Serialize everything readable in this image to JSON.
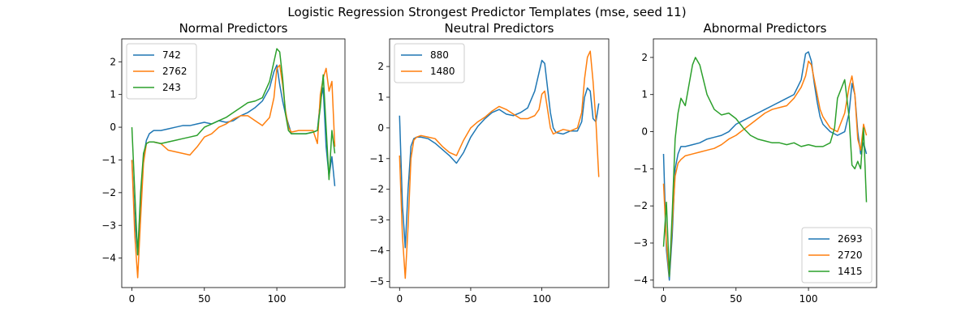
{
  "figure": {
    "suptitle": "Logistic Regression Strongest Predictor Templates (mse, seed 11)"
  },
  "colors": {
    "blue": "#1f77b4",
    "orange": "#ff7f0e",
    "green": "#2ca02c"
  },
  "chart_data": [
    {
      "type": "line",
      "title": "Normal Predictors",
      "xlim": [
        -7,
        147
      ],
      "ylim": [
        -4.9,
        2.7
      ],
      "xticks": [
        0,
        50,
        100
      ],
      "yticks": [
        -4,
        -3,
        -2,
        -1,
        0,
        1,
        2
      ],
      "legend_loc": "top-left",
      "series": [
        {
          "name": "742",
          "color": "#1f77b4",
          "x": [
            0,
            2,
            4,
            6,
            8,
            10,
            12,
            15,
            20,
            25,
            30,
            35,
            40,
            45,
            50,
            55,
            60,
            65,
            70,
            75,
            80,
            85,
            90,
            95,
            98,
            100,
            102,
            104,
            106,
            108,
            110,
            115,
            120,
            125,
            128,
            130,
            132,
            134,
            136,
            138,
            140
          ],
          "y": [
            -1.0,
            -2.8,
            -3.9,
            -2.2,
            -0.9,
            -0.4,
            -0.2,
            -0.1,
            -0.1,
            -0.05,
            0.0,
            0.05,
            0.05,
            0.1,
            0.15,
            0.1,
            0.2,
            0.15,
            0.2,
            0.35,
            0.45,
            0.6,
            0.8,
            1.2,
            1.7,
            1.9,
            1.3,
            0.8,
            0.4,
            0.1,
            -0.2,
            -0.2,
            -0.2,
            -0.15,
            -0.1,
            0.8,
            1.2,
            -0.6,
            -1.5,
            -0.9,
            -1.8
          ]
        },
        {
          "name": "2762",
          "color": "#ff7f0e",
          "x": [
            0,
            2,
            4,
            6,
            8,
            10,
            12,
            15,
            20,
            25,
            30,
            35,
            40,
            45,
            50,
            55,
            60,
            65,
            70,
            75,
            80,
            85,
            90,
            95,
            98,
            100,
            102,
            104,
            106,
            108,
            110,
            115,
            120,
            125,
            128,
            130,
            132,
            134,
            136,
            138,
            140
          ],
          "y": [
            -1.0,
            -3.3,
            -4.6,
            -2.8,
            -1.1,
            -0.5,
            -0.45,
            -0.45,
            -0.5,
            -0.7,
            -0.75,
            -0.8,
            -0.85,
            -0.6,
            -0.3,
            -0.2,
            0.0,
            0.1,
            0.25,
            0.35,
            0.35,
            0.2,
            0.05,
            0.3,
            0.9,
            1.8,
            1.9,
            1.3,
            0.5,
            0.0,
            -0.15,
            -0.1,
            -0.1,
            -0.1,
            -0.5,
            1.0,
            1.5,
            1.8,
            1.1,
            1.4,
            -0.6
          ]
        },
        {
          "name": "243",
          "color": "#2ca02c",
          "x": [
            0,
            2,
            4,
            6,
            8,
            10,
            12,
            15,
            20,
            25,
            30,
            35,
            40,
            45,
            50,
            55,
            60,
            65,
            70,
            75,
            80,
            85,
            90,
            95,
            98,
            100,
            102,
            104,
            106,
            108,
            110,
            115,
            120,
            125,
            128,
            130,
            132,
            134,
            136,
            138,
            140
          ],
          "y": [
            0.0,
            -2.0,
            -3.9,
            -2.0,
            -0.8,
            -0.5,
            -0.45,
            -0.45,
            -0.5,
            -0.45,
            -0.4,
            -0.35,
            -0.3,
            -0.25,
            0.0,
            0.1,
            0.2,
            0.3,
            0.45,
            0.6,
            0.75,
            0.8,
            0.9,
            1.4,
            2.0,
            2.4,
            2.3,
            1.5,
            0.4,
            -0.1,
            -0.2,
            -0.2,
            -0.2,
            -0.15,
            -0.1,
            0.6,
            1.6,
            0.0,
            -1.6,
            -0.1,
            -0.8
          ]
        }
      ]
    },
    {
      "type": "line",
      "title": "Neutral Predictors",
      "xlim": [
        -7,
        147
      ],
      "ylim": [
        -5.2,
        2.9
      ],
      "xticks": [
        0,
        50,
        100
      ],
      "yticks": [
        -5,
        -4,
        -3,
        -2,
        -1,
        0,
        1,
        2
      ],
      "legend_loc": "top-left",
      "series": [
        {
          "name": "880",
          "color": "#1f77b4",
          "x": [
            0,
            2,
            4,
            6,
            8,
            10,
            12,
            15,
            20,
            25,
            30,
            35,
            40,
            45,
            50,
            55,
            60,
            65,
            70,
            75,
            80,
            85,
            90,
            95,
            98,
            100,
            102,
            104,
            106,
            108,
            110,
            115,
            120,
            125,
            128,
            130,
            132,
            134,
            136,
            138,
            140
          ],
          "y": [
            0.4,
            -2.5,
            -3.9,
            -2.0,
            -0.6,
            -0.35,
            -0.3,
            -0.3,
            -0.35,
            -0.5,
            -0.7,
            -0.9,
            -1.15,
            -0.8,
            -0.3,
            0.05,
            0.3,
            0.5,
            0.6,
            0.45,
            0.4,
            0.5,
            0.65,
            1.2,
            1.8,
            2.2,
            2.1,
            1.3,
            0.5,
            0.0,
            -0.15,
            -0.2,
            -0.1,
            -0.1,
            0.2,
            1.0,
            1.3,
            1.2,
            0.3,
            0.2,
            0.8
          ]
        },
        {
          "name": "1480",
          "color": "#ff7f0e",
          "x": [
            0,
            2,
            4,
            6,
            8,
            10,
            12,
            15,
            20,
            25,
            30,
            35,
            40,
            45,
            50,
            55,
            60,
            65,
            70,
            75,
            80,
            85,
            90,
            95,
            98,
            100,
            102,
            104,
            106,
            108,
            110,
            115,
            120,
            125,
            128,
            130,
            132,
            134,
            136,
            138,
            140
          ],
          "y": [
            -0.9,
            -3.5,
            -4.9,
            -3.2,
            -1.0,
            -0.4,
            -0.3,
            -0.25,
            -0.3,
            -0.35,
            -0.6,
            -0.8,
            -0.9,
            -0.4,
            0.0,
            0.2,
            0.35,
            0.55,
            0.7,
            0.6,
            0.45,
            0.3,
            0.3,
            0.4,
            0.6,
            1.1,
            1.2,
            0.6,
            0.0,
            -0.2,
            -0.15,
            -0.05,
            -0.1,
            0.0,
            0.5,
            1.6,
            2.3,
            2.5,
            1.5,
            0.2,
            -1.6
          ]
        }
      ]
    },
    {
      "type": "line",
      "title": "Abnormal Predictors",
      "xlim": [
        -7,
        147
      ],
      "ylim": [
        -4.2,
        2.5
      ],
      "xticks": [
        0,
        50,
        100
      ],
      "yticks": [
        -4,
        -3,
        -2,
        -1,
        0,
        1,
        2
      ],
      "legend_loc": "bottom-right",
      "series": [
        {
          "name": "2693",
          "color": "#1f77b4",
          "x": [
            0,
            2,
            4,
            6,
            8,
            10,
            12,
            15,
            20,
            25,
            30,
            35,
            40,
            45,
            50,
            55,
            60,
            65,
            70,
            75,
            80,
            85,
            90,
            95,
            98,
            100,
            102,
            104,
            106,
            108,
            110,
            115,
            120,
            125,
            128,
            130,
            132,
            134,
            136,
            138,
            140
          ],
          "y": [
            -0.6,
            -3.2,
            -4.0,
            -2.8,
            -1.0,
            -0.6,
            -0.4,
            -0.4,
            -0.35,
            -0.3,
            -0.2,
            -0.15,
            -0.1,
            0.0,
            0.2,
            0.3,
            0.4,
            0.5,
            0.6,
            0.7,
            0.8,
            0.9,
            1.0,
            1.4,
            2.1,
            2.15,
            1.9,
            1.3,
            0.8,
            0.4,
            0.2,
            0.0,
            -0.1,
            0.0,
            0.5,
            1.3,
            1.0,
            0.0,
            -0.6,
            -0.3,
            -0.6
          ]
        },
        {
          "name": "2720",
          "color": "#ff7f0e",
          "x": [
            0,
            2,
            4,
            6,
            8,
            10,
            12,
            15,
            20,
            25,
            30,
            35,
            40,
            45,
            50,
            55,
            60,
            65,
            70,
            75,
            80,
            85,
            90,
            95,
            98,
            100,
            102,
            104,
            106,
            108,
            110,
            115,
            120,
            125,
            128,
            130,
            132,
            134,
            136,
            138,
            140
          ],
          "y": [
            -1.4,
            -3.0,
            -3.9,
            -2.5,
            -1.2,
            -0.85,
            -0.75,
            -0.65,
            -0.6,
            -0.55,
            -0.5,
            -0.45,
            -0.35,
            -0.2,
            -0.1,
            0.05,
            0.2,
            0.35,
            0.5,
            0.6,
            0.65,
            0.7,
            0.9,
            1.2,
            1.5,
            1.9,
            1.8,
            1.4,
            1.0,
            0.6,
            0.4,
            0.1,
            0.0,
            0.5,
            1.2,
            1.5,
            1.0,
            -0.2,
            -0.5,
            0.2,
            -0.1
          ]
        },
        {
          "name": "1415",
          "color": "#2ca02c",
          "x": [
            0,
            2,
            4,
            6,
            8,
            10,
            12,
            15,
            20,
            22,
            25,
            30,
            35,
            40,
            45,
            50,
            55,
            60,
            65,
            70,
            75,
            80,
            85,
            90,
            95,
            100,
            105,
            110,
            115,
            118,
            120,
            125,
            128,
            130,
            132,
            134,
            136,
            138,
            140
          ],
          "y": [
            -3.1,
            -1.9,
            -3.9,
            -2.2,
            -0.2,
            0.5,
            0.9,
            0.7,
            1.8,
            2.0,
            1.8,
            1.0,
            0.6,
            0.45,
            0.5,
            0.35,
            0.1,
            -0.1,
            -0.2,
            -0.25,
            -0.3,
            -0.3,
            -0.35,
            -0.3,
            -0.4,
            -0.35,
            -0.4,
            -0.4,
            -0.3,
            0.1,
            0.9,
            1.4,
            0.4,
            -0.9,
            -1.0,
            -0.8,
            -1.0,
            0.1,
            -1.9
          ]
        }
      ]
    }
  ]
}
